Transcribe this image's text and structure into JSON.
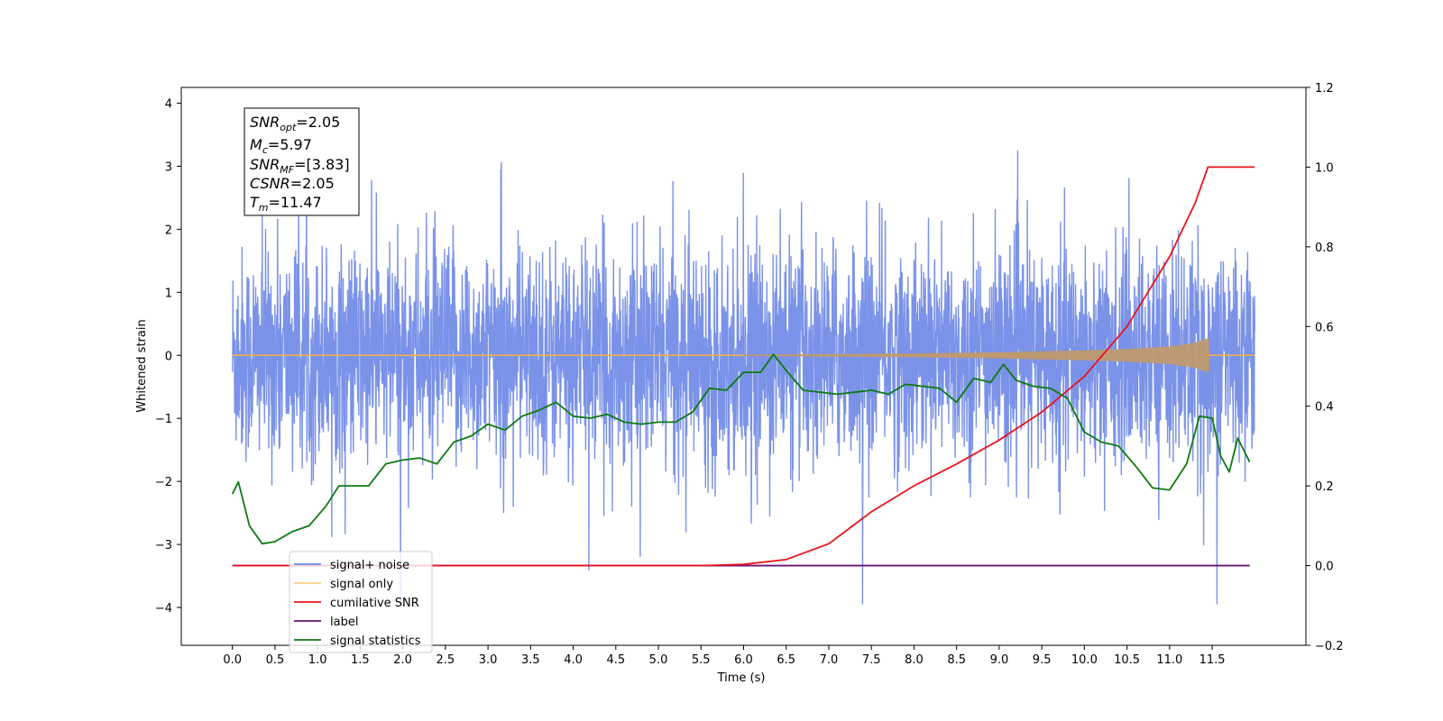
{
  "chart_data": {
    "type": "line",
    "title": "",
    "xlabel": "Time (s)",
    "ylabel": "Whitened strain",
    "y2label": "",
    "xlim": [
      -0.6,
      12.6
    ],
    "ylim": [
      -4.6,
      4.25
    ],
    "y2lim": [
      -0.2,
      1.2
    ],
    "grid": false,
    "legend_position": "lower-left",
    "x_ticks": [
      "0.0",
      "0.5",
      "1.0",
      "1.5",
      "2.0",
      "2.5",
      "3.0",
      "3.5",
      "4.0",
      "4.5",
      "5.0",
      "5.5",
      "6.0",
      "6.5",
      "7.0",
      "7.5",
      "8.0",
      "8.5",
      "9.0",
      "9.5",
      "10.0",
      "10.5",
      "11.0",
      "11.5"
    ],
    "y_ticks": [
      "4",
      "3",
      "2",
      "1",
      "0",
      "−1",
      "−2",
      "−3",
      "−4"
    ],
    "y2_ticks": [
      "1.2",
      "1.0",
      "0.8",
      "0.6",
      "0.4",
      "0.2",
      "0.0",
      "−0.2"
    ],
    "annotation": [
      {
        "base": "SNR",
        "sub": "opt",
        "rest": "=2.05"
      },
      {
        "base": "M",
        "sub": "c",
        "rest": "=5.97"
      },
      {
        "base": "SNR",
        "sub": "MF",
        "rest": "=[3.83]"
      },
      {
        "base": "CSNR",
        "sub": "",
        "rest": "=2.05"
      },
      {
        "base": "T",
        "sub": "m",
        "rest": "=11.47"
      }
    ],
    "series": [
      {
        "name": "signal+ noise",
        "color": "#6b86e6",
        "axis": "left",
        "approx_std": 0.85,
        "x_range": [
          0.0,
          12.0
        ]
      },
      {
        "name": "signal only",
        "color": "#f5b041",
        "axis": "left",
        "envelope_x": [
          0,
          6,
          7,
          8,
          9,
          10,
          10.5,
          11,
          11.3,
          11.47
        ],
        "envelope_y": [
          0.005,
          0.01,
          0.02,
          0.03,
          0.05,
          0.08,
          0.1,
          0.14,
          0.2,
          0.28
        ]
      },
      {
        "name": "cumilative SNR",
        "color": "#e8141e",
        "axis": "right",
        "x": [
          0,
          5.5,
          6.0,
          6.5,
          7.0,
          7.5,
          8.0,
          8.5,
          9.0,
          9.5,
          10.0,
          10.5,
          11.0,
          11.3,
          11.45,
          11.47,
          12.0
        ],
        "y": [
          0,
          0,
          0.003,
          0.015,
          0.055,
          0.135,
          0.2,
          0.255,
          0.315,
          0.385,
          0.475,
          0.6,
          0.775,
          0.91,
          1.0,
          1.0,
          1.0
        ]
      },
      {
        "name": "label",
        "color": "#6a0f74",
        "axis": "right",
        "x": [
          0,
          11.94
        ],
        "y": [
          0,
          0
        ]
      },
      {
        "name": "signal statistics",
        "color": "#0e7a12",
        "axis": "right",
        "x": [
          0.0,
          0.07,
          0.2,
          0.35,
          0.5,
          0.7,
          0.9,
          1.1,
          1.25,
          1.4,
          1.6,
          1.8,
          2.0,
          2.2,
          2.4,
          2.6,
          2.8,
          3.0,
          3.2,
          3.4,
          3.6,
          3.8,
          4.0,
          4.2,
          4.4,
          4.6,
          4.8,
          5.0,
          5.2,
          5.4,
          5.6,
          5.8,
          6.0,
          6.2,
          6.35,
          6.5,
          6.7,
          6.9,
          7.1,
          7.3,
          7.5,
          7.7,
          7.9,
          8.1,
          8.3,
          8.5,
          8.7,
          8.9,
          9.05,
          9.2,
          9.4,
          9.6,
          9.8,
          10.0,
          10.2,
          10.4,
          10.6,
          10.8,
          11.0,
          11.2,
          11.35,
          11.5,
          11.6,
          11.7,
          11.8,
          11.94
        ],
        "y": [
          0.18,
          0.21,
          0.1,
          0.055,
          0.06,
          0.085,
          0.1,
          0.15,
          0.2,
          0.2,
          0.2,
          0.255,
          0.265,
          0.27,
          0.255,
          0.31,
          0.325,
          0.355,
          0.34,
          0.375,
          0.39,
          0.41,
          0.375,
          0.37,
          0.38,
          0.36,
          0.355,
          0.36,
          0.36,
          0.385,
          0.445,
          0.44,
          0.485,
          0.485,
          0.53,
          0.49,
          0.44,
          0.435,
          0.43,
          0.435,
          0.44,
          0.43,
          0.455,
          0.45,
          0.445,
          0.41,
          0.47,
          0.46,
          0.505,
          0.465,
          0.45,
          0.445,
          0.42,
          0.335,
          0.31,
          0.3,
          0.25,
          0.195,
          0.19,
          0.255,
          0.375,
          0.37,
          0.275,
          0.235,
          0.32,
          0.26
        ]
      }
    ]
  }
}
